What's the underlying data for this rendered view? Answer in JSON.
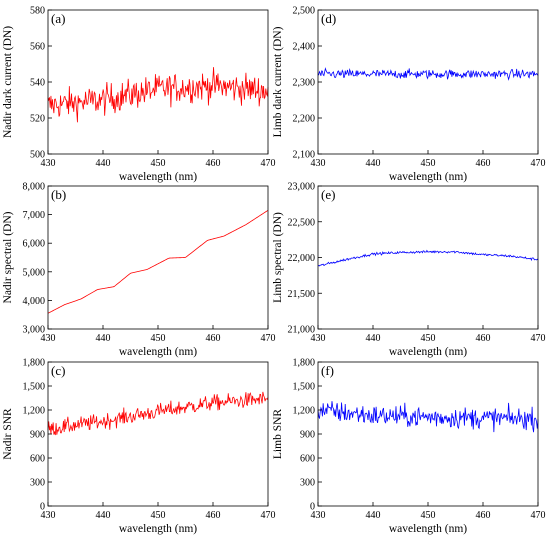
{
  "chart_data": [
    {
      "type": "line",
      "panel_label": "(a)",
      "xlabel": "wavelength (nm)",
      "ylabel": "Nadir dark current (DN)",
      "xlim": [
        430,
        470
      ],
      "ylim": [
        500,
        580
      ],
      "xticks": [
        430,
        440,
        450,
        460,
        470
      ],
      "yticks": [
        500,
        520,
        540,
        560,
        580
      ],
      "ytick_labels": [
        "500",
        "520",
        "540",
        "560",
        "580"
      ],
      "color": "#ff0000",
      "grid": false,
      "series_shape": {
        "n": 300,
        "baseline": [
          [
            430,
            527
          ],
          [
            440,
            530
          ],
          [
            450,
            536
          ],
          [
            460,
            538
          ],
          [
            470,
            535
          ]
        ],
        "noise": 6
      }
    },
    {
      "type": "line",
      "panel_label": "(b)",
      "xlabel": "wavelength (nm)",
      "ylabel": "Nadir spectral (DN)",
      "xlim": [
        430,
        470
      ],
      "ylim": [
        3000,
        8000
      ],
      "xticks": [
        430,
        440,
        450,
        460,
        470
      ],
      "yticks": [
        3000,
        4000,
        5000,
        6000,
        7000,
        8000
      ],
      "ytick_labels": [
        "3,000",
        "4,000",
        "5,000",
        "6,000",
        "7,000",
        "8,000"
      ],
      "color": "#ff0000",
      "grid": false,
      "series_shape": {
        "n": 200,
        "baseline": [
          [
            430,
            3550
          ],
          [
            433,
            3850
          ],
          [
            436,
            4050
          ],
          [
            439,
            4380
          ],
          [
            442,
            4480
          ],
          [
            445,
            4950
          ],
          [
            448,
            5080
          ],
          [
            452,
            5480
          ],
          [
            455,
            5500
          ],
          [
            459,
            6100
          ],
          [
            462,
            6250
          ],
          [
            466,
            6650
          ],
          [
            470,
            7150
          ]
        ],
        "noise": 0
      }
    },
    {
      "type": "line",
      "panel_label": "(c)",
      "xlabel": "wavelength (nm)",
      "ylabel": "Nadir SNR",
      "xlim": [
        430,
        470
      ],
      "ylim": [
        0,
        1800
      ],
      "xticks": [
        430,
        440,
        450,
        460,
        470
      ],
      "yticks": [
        0,
        300,
        600,
        900,
        1200,
        1500,
        1800
      ],
      "ytick_labels": [
        "0",
        "300",
        "600",
        "900",
        "1,200",
        "1,500",
        "1,800"
      ],
      "color": "#ff0000",
      "grid": false,
      "series_shape": {
        "n": 300,
        "baseline": [
          [
            430,
            960
          ],
          [
            440,
            1060
          ],
          [
            450,
            1180
          ],
          [
            460,
            1290
          ],
          [
            470,
            1340
          ]
        ],
        "noise": 70
      }
    },
    {
      "type": "line",
      "panel_label": "(d)",
      "xlabel": "wavelength (nm)",
      "ylabel": "Limb dark current (DN)",
      "xlim": [
        430,
        470
      ],
      "ylim": [
        2100,
        2500
      ],
      "xticks": [
        430,
        440,
        450,
        460,
        470
      ],
      "yticks": [
        2100,
        2200,
        2300,
        2400,
        2500
      ],
      "ytick_labels": [
        "2,100",
        "2,200",
        "2,300",
        "2,400",
        "2,500"
      ],
      "color": "#0000ff",
      "grid": false,
      "series_shape": {
        "n": 300,
        "baseline": [
          [
            430,
            2322
          ],
          [
            450,
            2322
          ],
          [
            470,
            2322
          ]
        ],
        "noise": 9
      }
    },
    {
      "type": "line",
      "panel_label": "(e)",
      "xlabel": "wavelength (nm)",
      "ylabel": "Limb spectral (DN)",
      "xlim": [
        430,
        470
      ],
      "ylim": [
        21000,
        23000
      ],
      "xticks": [
        430,
        440,
        450,
        460,
        470
      ],
      "yticks": [
        21000,
        21500,
        22000,
        22500,
        23000
      ],
      "ytick_labels": [
        "21,000",
        "21,500",
        "22,000",
        "22,500",
        "23,000"
      ],
      "color": "#0000ff",
      "grid": false,
      "series_shape": {
        "n": 300,
        "baseline": [
          [
            430,
            21880
          ],
          [
            435,
            21970
          ],
          [
            440,
            22050
          ],
          [
            445,
            22070
          ],
          [
            450,
            22080
          ],
          [
            455,
            22080
          ],
          [
            460,
            22040
          ],
          [
            465,
            22020
          ],
          [
            470,
            21970
          ]
        ],
        "noise": 12
      }
    },
    {
      "type": "line",
      "panel_label": "(f)",
      "xlabel": "wavelength (nm)",
      "ylabel": "Limb SNR",
      "xlim": [
        430,
        470
      ],
      "ylim": [
        0,
        1800
      ],
      "xticks": [
        430,
        440,
        450,
        460,
        470
      ],
      "yticks": [
        0,
        300,
        600,
        900,
        1200,
        1500,
        1800
      ],
      "ytick_labels": [
        "0",
        "300",
        "600",
        "900",
        "1,200",
        "1,500",
        "1,800"
      ],
      "color": "#0000ff",
      "grid": false,
      "series_shape": {
        "n": 300,
        "baseline": [
          [
            430,
            1200
          ],
          [
            440,
            1130
          ],
          [
            450,
            1110
          ],
          [
            460,
            1100
          ],
          [
            470,
            1090
          ]
        ],
        "noise": 95
      }
    }
  ]
}
